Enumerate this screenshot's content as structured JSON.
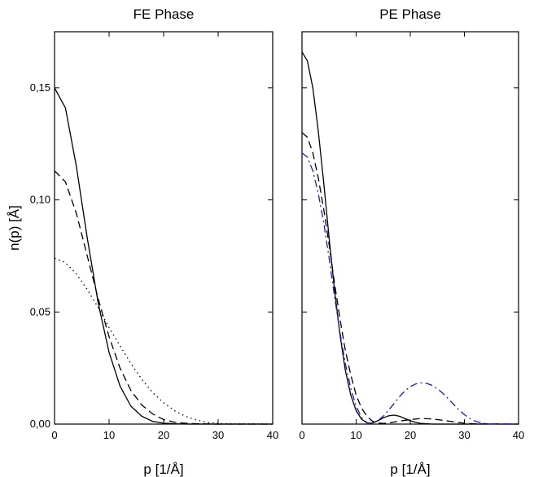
{
  "chart_data": [
    {
      "type": "line",
      "title": "FE Phase",
      "xlabel": "p [1/Å]",
      "ylabel": "n(p) [Å]",
      "xlim": [
        0,
        40
      ],
      "ylim": [
        0,
        0.175
      ],
      "x_ticks": [
        "0",
        "10",
        "20",
        "30",
        "40"
      ],
      "y_ticks": [
        "0,00",
        "0,05",
        "0,10",
        "0,15"
      ],
      "y_tick_values": [
        0,
        0.05,
        0.1,
        0.15
      ],
      "grid": false,
      "series": [
        {
          "style": "solid",
          "color": "#000000",
          "x": [
            0,
            2,
            4,
            6,
            8,
            10,
            12,
            14,
            16,
            18,
            20,
            22,
            25,
            30,
            40
          ],
          "y": [
            0.15,
            0.141,
            0.115,
            0.083,
            0.054,
            0.032,
            0.017,
            0.008,
            0.0035,
            0.0012,
            0.0004,
            0.0001,
            0,
            0,
            0
          ]
        },
        {
          "style": "dashed",
          "color": "#000000",
          "x": [
            0,
            2,
            4,
            6,
            8,
            10,
            12,
            14,
            16,
            18,
            20,
            22,
            25,
            30,
            40
          ],
          "y": [
            0.113,
            0.108,
            0.094,
            0.075,
            0.056,
            0.039,
            0.025,
            0.015,
            0.0085,
            0.0045,
            0.002,
            0.0008,
            0.0002,
            0,
            0
          ]
        },
        {
          "style": "dotted",
          "color": "#000000",
          "x": [
            0,
            2,
            4,
            6,
            8,
            10,
            12,
            14,
            16,
            18,
            20,
            22,
            24,
            26,
            28,
            30,
            32,
            40
          ],
          "y": [
            0.074,
            0.072,
            0.067,
            0.06,
            0.052,
            0.043,
            0.035,
            0.027,
            0.02,
            0.014,
            0.0095,
            0.006,
            0.0035,
            0.0018,
            0.0008,
            0.0003,
            0.0001,
            0
          ]
        }
      ]
    },
    {
      "type": "line",
      "title": "PE Phase",
      "xlabel": "p [1/Å]",
      "xlim": [
        0,
        40
      ],
      "ylim": [
        0,
        0.175
      ],
      "x_ticks": [
        "0",
        "10",
        "20",
        "30",
        "40"
      ],
      "grid": false,
      "series": [
        {
          "style": "solid",
          "color": "#000000",
          "x": [
            0,
            1,
            2,
            3,
            4,
            5,
            6,
            7,
            8,
            9,
            10,
            11,
            12,
            13,
            14,
            15,
            16,
            17,
            18,
            19,
            20,
            21,
            22,
            24,
            28,
            40
          ],
          "y": [
            0.166,
            0.162,
            0.15,
            0.131,
            0.108,
            0.083,
            0.06,
            0.04,
            0.024,
            0.013,
            0.006,
            0.0022,
            0.0005,
            0.0005,
            0.0015,
            0.0028,
            0.0037,
            0.004,
            0.0035,
            0.0025,
            0.0015,
            0.0008,
            0.0003,
            0,
            0,
            0
          ]
        },
        {
          "style": "dashed",
          "color": "#000000",
          "x": [
            0,
            1,
            2,
            3,
            4,
            5,
            6,
            7,
            8,
            9,
            10,
            11,
            12,
            13,
            14,
            15,
            16,
            17,
            18,
            20,
            22,
            24,
            26,
            28,
            30,
            32,
            40
          ],
          "y": [
            0.13,
            0.128,
            0.121,
            0.11,
            0.096,
            0.08,
            0.063,
            0.047,
            0.033,
            0.022,
            0.013,
            0.0072,
            0.0035,
            0.0013,
            0.0005,
            0.0003,
            0.0005,
            0.0009,
            0.0013,
            0.002,
            0.0025,
            0.0023,
            0.0017,
            0.001,
            0.0004,
            0.0001,
            0
          ]
        },
        {
          "style": "dashdot",
          "color": "#1a1acc",
          "x": [
            0,
            1,
            2,
            3,
            4,
            5,
            6,
            7,
            8,
            9,
            10,
            11,
            12,
            13,
            14,
            15,
            16,
            17,
            18,
            19,
            20,
            21,
            22,
            23,
            24,
            25,
            26,
            27,
            28,
            29,
            30,
            31,
            32,
            33,
            34,
            35,
            40
          ],
          "y": [
            0.121,
            0.119,
            0.113,
            0.103,
            0.09,
            0.074,
            0.057,
            0.041,
            0.027,
            0.016,
            0.008,
            0.003,
            0.0007,
            0.0003,
            0.0015,
            0.0035,
            0.0062,
            0.0092,
            0.0122,
            0.0148,
            0.0167,
            0.0179,
            0.0184,
            0.0182,
            0.0173,
            0.0158,
            0.0138,
            0.0114,
            0.0088,
            0.0063,
            0.0042,
            0.0025,
            0.0013,
            0.0006,
            0.0002,
            0,
            0
          ]
        }
      ]
    }
  ]
}
